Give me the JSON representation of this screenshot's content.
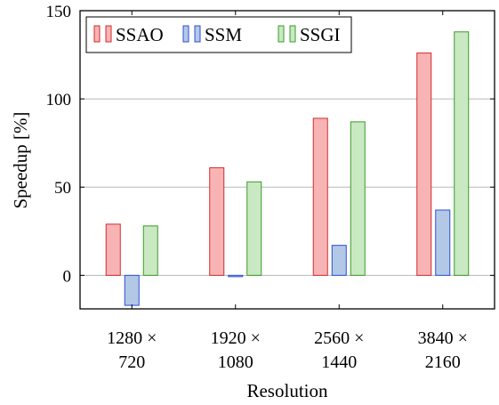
{
  "chart_data": {
    "type": "bar",
    "categories": [
      [
        "1280 ×",
        "720"
      ],
      [
        "1920 ×",
        "1080"
      ],
      [
        "2560 ×",
        "1440"
      ],
      [
        "3840 ×",
        "2160"
      ]
    ],
    "series": [
      {
        "name": "SSAO",
        "values": [
          29,
          61,
          89,
          126
        ],
        "fill": "#f8b4b4",
        "stroke": "#d42a2a"
      },
      {
        "name": "SSM",
        "values": [
          -17,
          -0.5,
          17,
          37
        ],
        "fill": "#b3c8e6",
        "stroke": "#2a4fd4"
      },
      {
        "name": "SSGI",
        "values": [
          28,
          53,
          87,
          138
        ],
        "fill": "#c9e9c2",
        "stroke": "#3a9a2a"
      }
    ],
    "xlabel": "Resolution",
    "ylabel": "Speedup [%]",
    "ylim": [
      -19,
      150
    ],
    "yticks": [
      0,
      50,
      100,
      150
    ],
    "grid": true,
    "legend_position": "top-left"
  }
}
